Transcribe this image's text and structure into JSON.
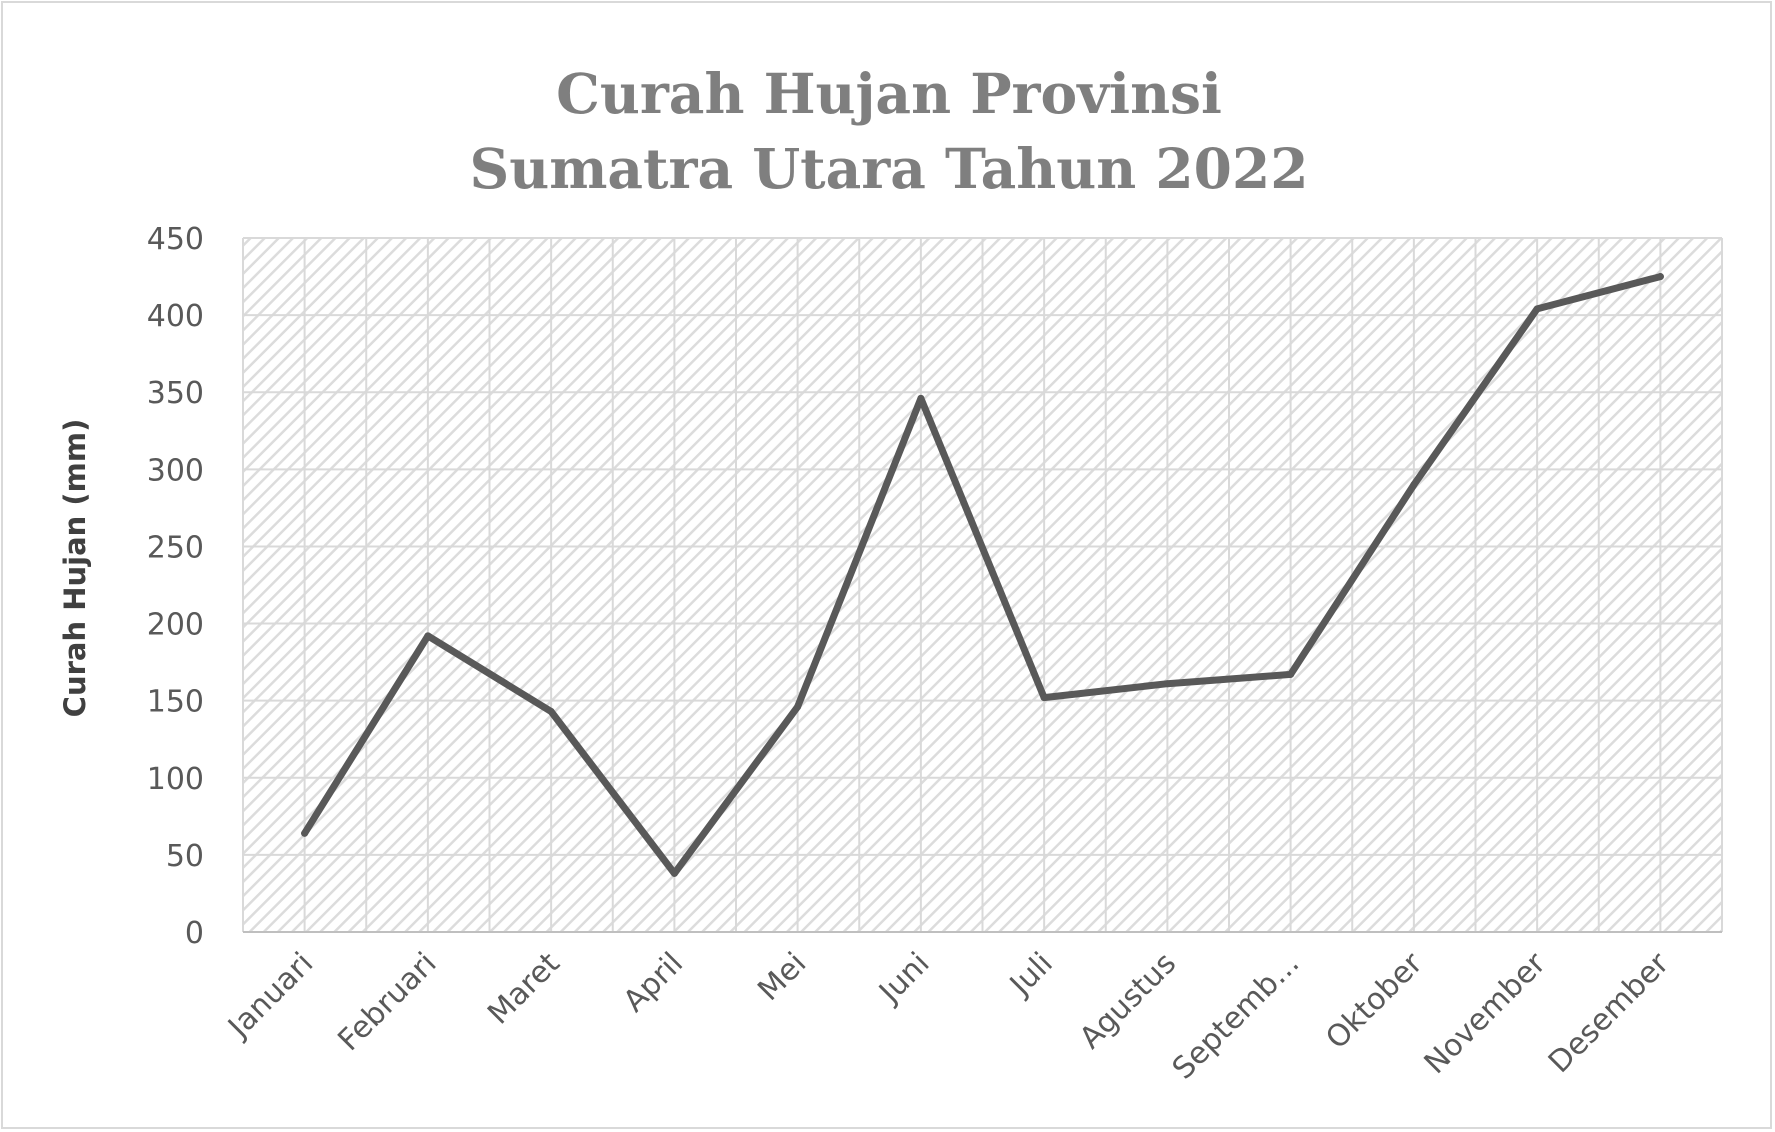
{
  "chart_data": {
    "type": "line",
    "title_lines": [
      "Curah Hujan Provinsi",
      "Sumatra Utara Tahun 2022"
    ],
    "ylabel": "Curah Hujan (mm)",
    "xlabel": "",
    "categories": [
      "Januari",
      "Februari",
      "Maret",
      "April",
      "Mei",
      "Juni",
      "Juli",
      "Agustus",
      "Septemb...",
      "Oktober",
      "November",
      "Desember"
    ],
    "series": [
      {
        "values": [
          64,
          192,
          143,
          38,
          146,
          346,
          152,
          161,
          167,
          290,
          404,
          425
        ]
      }
    ],
    "ylim": [
      0,
      450
    ],
    "yticks": [
      "0",
      "50",
      "100",
      "150",
      "200",
      "250",
      "300",
      "350",
      "400",
      "450"
    ],
    "grid": true,
    "line_color": "#595959",
    "grid_color": "#d9d9d9",
    "hatch_color": "#dcdcdc"
  }
}
